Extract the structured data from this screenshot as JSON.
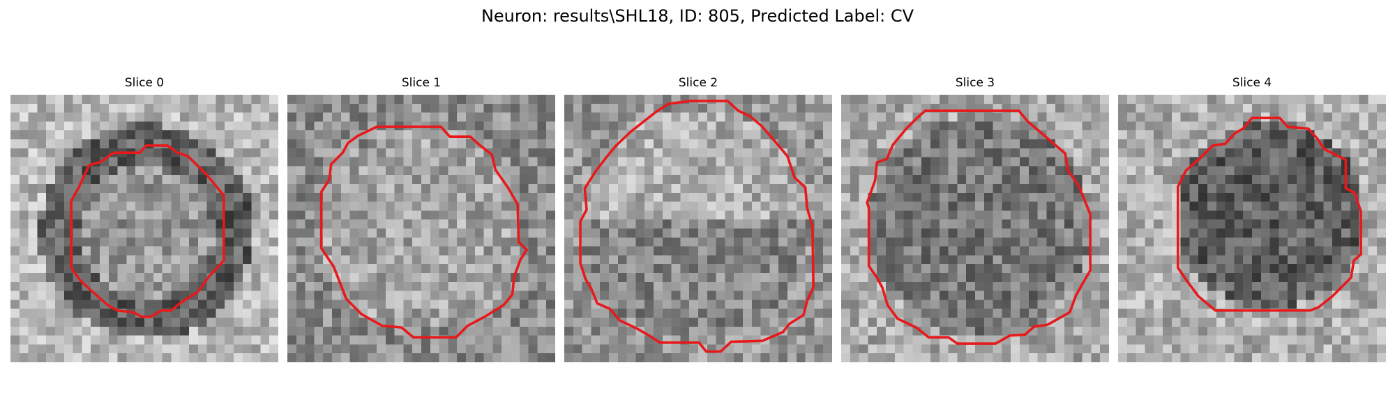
{
  "figure": {
    "title": "Neuron: results\\SHL18, ID: 805, Predicted Label: CV"
  },
  "slices": [
    {
      "title": "Slice 0",
      "image_name": "grayscale-slice-0",
      "contour_color": "#e8191b"
    },
    {
      "title": "Slice 1",
      "image_name": "grayscale-slice-1",
      "contour_color": "#e8191b"
    },
    {
      "title": "Slice 2",
      "image_name": "grayscale-slice-2",
      "contour_color": "#e8191b"
    },
    {
      "title": "Slice 3",
      "image_name": "grayscale-slice-3",
      "contour_color": "#e8191b"
    },
    {
      "title": "Slice 4",
      "image_name": "grayscale-slice-4",
      "contour_color": "#e8191b"
    }
  ]
}
